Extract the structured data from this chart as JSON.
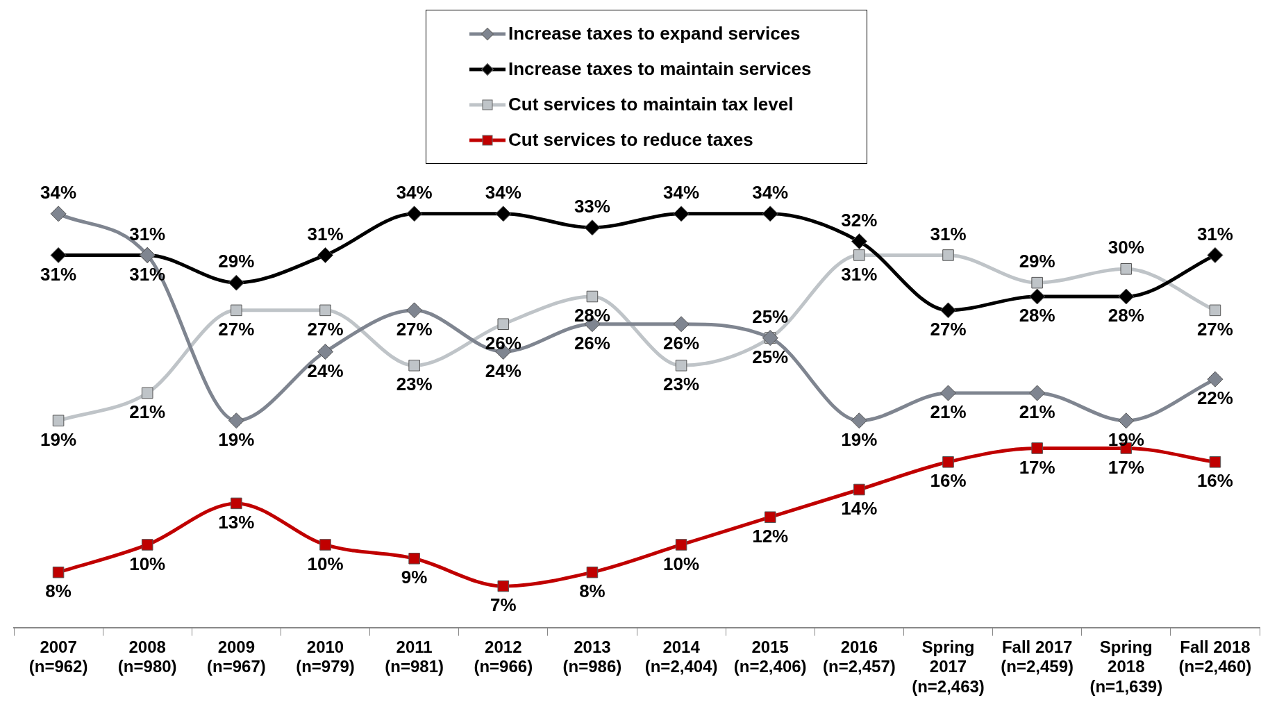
{
  "chart_data": {
    "type": "line",
    "categories": [
      "2007\n(n=962)",
      "2008\n(n=980)",
      "2009\n(n=967)",
      "2010\n(n=979)",
      "2011\n(n=981)",
      "2012\n(n=966)",
      "2013\n(n=986)",
      "2014\n(n=2,404)",
      "2015\n(n=2,406)",
      "2016\n(n=2,457)",
      "Spring\n2017\n(n=2,463)",
      "Fall 2017\n(n=2,459)",
      "Spring\n2018\n(n=1,639)",
      "Fall 2018\n(n=2,460)"
    ],
    "series": [
      {
        "name": "Increase taxes to expand services",
        "color": "#7f8590",
        "marker": "diamond",
        "values": [
          34,
          31,
          19,
          24,
          27,
          24,
          26,
          26,
          25,
          19,
          21,
          21,
          19,
          22
        ],
        "value_labels": [
          "34%",
          "31%",
          "19%",
          "24%",
          "27%",
          "24%",
          "26%",
          "26%",
          "25%",
          "19%",
          "21%",
          "21%",
          "19%",
          "22%"
        ]
      },
      {
        "name": "Increase taxes to maintain services",
        "color": "#000000",
        "marker": "diamond",
        "values": [
          31,
          31,
          29,
          31,
          34,
          34,
          33,
          34,
          34,
          32,
          27,
          28,
          28,
          31
        ],
        "value_labels": [
          "31%",
          "31%",
          "29%",
          "31%",
          "34%",
          "34%",
          "33%",
          "34%",
          "34%",
          "32%",
          "27%",
          "28%",
          "28%",
          "31%"
        ]
      },
      {
        "name": "Cut services to maintain tax level",
        "color": "#bfc4c8",
        "marker": "square",
        "values": [
          19,
          21,
          27,
          27,
          23,
          26,
          28,
          23,
          25,
          31,
          31,
          29,
          30,
          27
        ],
        "value_labels": [
          "19%",
          "21%",
          "27%",
          "27%",
          "23%",
          "26%",
          "28%",
          "23%",
          "25%",
          "31%",
          "31%",
          "29%",
          "30%",
          "27%"
        ]
      },
      {
        "name": "Cut services to reduce taxes",
        "color": "#c00000",
        "marker": "square",
        "values": [
          8,
          10,
          13,
          10,
          9,
          7,
          8,
          10,
          12,
          14,
          16,
          17,
          17,
          16
        ],
        "value_labels": [
          "8%",
          "10%",
          "13%",
          "10%",
          "9%",
          "7%",
          "8%",
          "10%",
          "12%",
          "14%",
          "16%",
          "17%",
          "17%",
          "16%"
        ]
      }
    ],
    "legend": "top",
    "tick_labels": "x"
  }
}
